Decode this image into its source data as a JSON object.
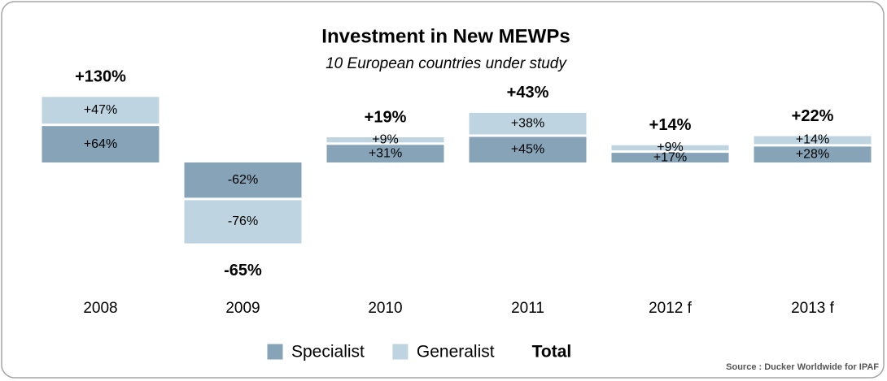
{
  "chart_data": {
    "type": "bar",
    "title": "Investment in New MEWPs",
    "subtitle": "10 European countries under study",
    "categories": [
      "2008",
      "2009",
      "2010",
      "2011",
      "2012 f",
      "2013 f"
    ],
    "series": [
      {
        "name": "Specialist",
        "color": "#87a3b8",
        "values": [
          64,
          -62,
          31,
          45,
          17,
          28
        ],
        "value_labels": [
          "+64%",
          "-62%",
          "+31%",
          "+45%",
          "+17%",
          "+28%"
        ]
      },
      {
        "name": "Generalist",
        "color": "#bed4e0",
        "values": [
          47,
          -76,
          9,
          38,
          9,
          14
        ],
        "value_labels": [
          "+47%",
          "-76%",
          "+9%",
          "+38%",
          "+9%",
          "+14%"
        ]
      }
    ],
    "totals": {
      "name": "Total",
      "values": [
        130,
        -65,
        19,
        43,
        14,
        22
      ],
      "value_labels": [
        "+130%",
        "-65%",
        "+19%",
        "+43%",
        "+14%",
        "+22%"
      ]
    },
    "source": "Source : Ducker Worldwide for IPAF"
  }
}
